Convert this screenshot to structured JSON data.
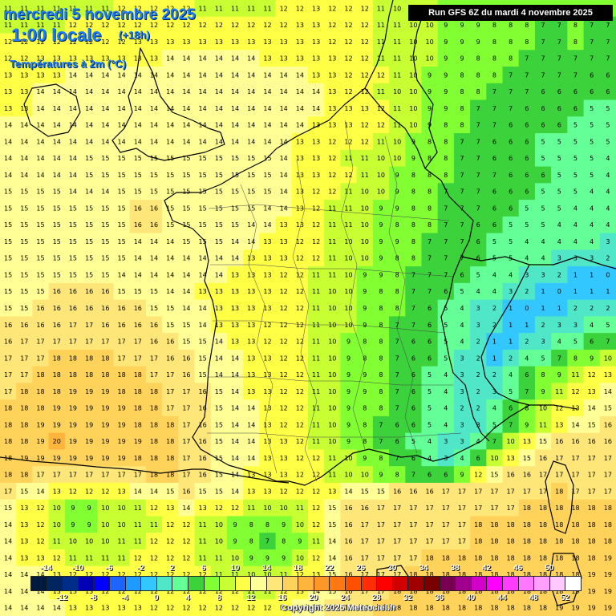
{
  "title_line1": "mercredi 5 novembre 2025",
  "title_line2": "1:00 locale",
  "title_offset": "(+18h)",
  "variable_label": "Températures à 2m (°C)",
  "run_info": "Run GFS 6Z du mardi 4 novembre 2025",
  "copyright": "Copyright 2025 Meteociel.fr",
  "legend": {
    "top_labels": [
      "-14",
      "-10",
      "-6",
      "-2",
      "2",
      "6",
      "10",
      "14",
      "18",
      "22",
      "26",
      "30",
      "34",
      "38",
      "42",
      "46",
      "50"
    ],
    "bottom_labels": [
      "-12",
      "-8",
      "-4",
      "0",
      "4",
      "8",
      "12",
      "16",
      "20",
      "24",
      "28",
      "32",
      "36",
      "40",
      "44",
      "48",
      "52"
    ],
    "colors": [
      "#001a3d",
      "#00255f",
      "#002d8a",
      "#0000b4",
      "#0000ff",
      "#1e64ff",
      "#1e9bff",
      "#32c8ff",
      "#50e6c8",
      "#64ff96",
      "#3cd23c",
      "#82ff32",
      "#c8ff32",
      "#ffff46",
      "#ffff96",
      "#ffe678",
      "#ffd25a",
      "#ffb43c",
      "#ff9628",
      "#ff7814",
      "#ff5000",
      "#ff2d00",
      "#ff0000",
      "#d20000",
      "#a00000",
      "#780000",
      "#780050",
      "#a0008c",
      "#d200c8",
      "#ff00ff",
      "#ff3cff",
      "#ff78ff",
      "#ffa0ff",
      "#ffc8ff",
      "#ffffff"
    ]
  },
  "temperature_grid": [
    [
      11,
      11,
      11,
      11,
      11,
      11,
      11,
      12,
      12,
      12,
      12,
      12,
      11,
      11,
      11,
      11,
      11,
      12,
      12,
      13,
      12,
      12,
      12,
      11,
      10,
      10,
      10,
      9,
      9,
      9,
      8,
      8,
      8,
      8,
      8,
      9,
      9,
      9
    ],
    [
      11,
      11,
      11,
      11,
      12,
      12,
      12,
      12,
      12,
      12,
      12,
      12,
      12,
      12,
      12,
      12,
      12,
      12,
      13,
      13,
      12,
      12,
      12,
      11,
      11,
      10,
      10,
      9,
      9,
      9,
      8,
      8,
      8,
      7,
      7,
      8,
      7,
      7
    ],
    [
      12,
      12,
      12,
      12,
      12,
      12,
      12,
      12,
      13,
      13,
      13,
      13,
      13,
      13,
      13,
      13,
      13,
      13,
      13,
      13,
      12,
      12,
      12,
      11,
      11,
      10,
      10,
      9,
      9,
      9,
      8,
      8,
      8,
      7,
      7,
      8,
      7,
      7
    ],
    [
      12,
      12,
      13,
      13,
      13,
      13,
      13,
      13,
      13,
      13,
      14,
      14,
      14,
      14,
      14,
      14,
      13,
      13,
      13,
      13,
      13,
      12,
      12,
      11,
      11,
      10,
      10,
      9,
      9,
      8,
      8,
      8,
      7,
      7,
      7,
      7,
      7,
      7
    ],
    [
      13,
      13,
      13,
      13,
      14,
      14,
      14,
      14,
      14,
      14,
      14,
      14,
      14,
      14,
      14,
      14,
      14,
      14,
      14,
      13,
      13,
      12,
      12,
      12,
      11,
      10,
      9,
      9,
      8,
      8,
      8,
      7,
      7,
      7,
      7,
      7,
      6,
      6
    ],
    [
      13,
      13,
      14,
      14,
      14,
      14,
      14,
      14,
      14,
      14,
      14,
      14,
      14,
      14,
      14,
      14,
      14,
      14,
      14,
      14,
      13,
      12,
      12,
      11,
      10,
      10,
      9,
      9,
      8,
      8,
      7,
      7,
      7,
      6,
      6,
      6,
      6,
      6
    ],
    [
      13,
      13,
      14,
      14,
      14,
      14,
      14,
      14,
      14,
      14,
      14,
      14,
      14,
      14,
      14,
      14,
      14,
      14,
      14,
      14,
      13,
      13,
      13,
      12,
      11,
      10,
      9,
      9,
      8,
      7,
      7,
      7,
      6,
      6,
      6,
      6,
      5,
      5
    ],
    [
      14,
      14,
      14,
      14,
      14,
      14,
      14,
      14,
      14,
      14,
      14,
      14,
      14,
      14,
      14,
      14,
      14,
      14,
      14,
      13,
      13,
      13,
      12,
      12,
      11,
      10,
      9,
      8,
      8,
      7,
      7,
      6,
      6,
      6,
      6,
      5,
      5,
      5
    ],
    [
      14,
      14,
      14,
      14,
      14,
      14,
      14,
      14,
      14,
      14,
      14,
      14,
      14,
      14,
      14,
      14,
      14,
      14,
      13,
      13,
      12,
      12,
      12,
      11,
      10,
      9,
      8,
      8,
      7,
      7,
      6,
      6,
      6,
      5,
      5,
      5,
      5,
      5
    ],
    [
      14,
      14,
      14,
      14,
      14,
      15,
      15,
      15,
      15,
      15,
      15,
      15,
      15,
      15,
      15,
      15,
      15,
      14,
      13,
      13,
      12,
      11,
      11,
      10,
      10,
      9,
      8,
      8,
      7,
      7,
      6,
      6,
      6,
      5,
      5,
      5,
      5,
      4
    ],
    [
      14,
      14,
      14,
      14,
      14,
      15,
      15,
      15,
      15,
      15,
      15,
      15,
      15,
      15,
      15,
      15,
      15,
      14,
      13,
      13,
      12,
      12,
      11,
      10,
      9,
      8,
      8,
      8,
      7,
      7,
      7,
      6,
      6,
      6,
      5,
      5,
      5,
      4
    ],
    [
      15,
      15,
      15,
      15,
      14,
      14,
      14,
      15,
      15,
      15,
      15,
      15,
      15,
      15,
      15,
      15,
      15,
      14,
      13,
      12,
      12,
      11,
      10,
      10,
      9,
      8,
      8,
      7,
      7,
      7,
      6,
      6,
      6,
      5,
      5,
      5,
      4,
      4
    ],
    [
      15,
      15,
      15,
      15,
      15,
      15,
      15,
      15,
      16,
      16,
      15,
      15,
      15,
      15,
      15,
      15,
      14,
      14,
      13,
      12,
      11,
      11,
      10,
      9,
      9,
      8,
      8,
      7,
      7,
      7,
      6,
      6,
      5,
      5,
      5,
      4,
      4,
      4
    ],
    [
      15,
      15,
      15,
      15,
      15,
      15,
      15,
      15,
      16,
      16,
      15,
      15,
      15,
      15,
      15,
      14,
      14,
      13,
      13,
      12,
      11,
      11,
      10,
      9,
      8,
      8,
      8,
      7,
      7,
      6,
      6,
      5,
      5,
      5,
      4,
      4,
      4,
      4
    ],
    [
      15,
      15,
      15,
      15,
      15,
      15,
      15,
      15,
      14,
      14,
      14,
      15,
      15,
      15,
      14,
      14,
      13,
      13,
      12,
      12,
      11,
      10,
      10,
      9,
      9,
      8,
      7,
      7,
      7,
      6,
      5,
      5,
      4,
      4,
      4,
      4,
      4,
      3
    ],
    [
      15,
      15,
      15,
      15,
      15,
      15,
      15,
      15,
      14,
      14,
      14,
      14,
      14,
      14,
      14,
      13,
      13,
      13,
      12,
      12,
      11,
      10,
      10,
      9,
      8,
      8,
      7,
      7,
      7,
      6,
      5,
      5,
      4,
      4,
      3,
      3,
      3,
      2
    ],
    [
      15,
      15,
      15,
      15,
      15,
      15,
      15,
      14,
      14,
      14,
      14,
      14,
      14,
      14,
      13,
      13,
      13,
      12,
      12,
      11,
      11,
      10,
      9,
      9,
      8,
      7,
      7,
      7,
      6,
      5,
      4,
      4,
      3,
      3,
      2,
      1,
      1,
      0
    ],
    [
      15,
      15,
      15,
      16,
      16,
      16,
      16,
      15,
      15,
      15,
      14,
      14,
      13,
      13,
      13,
      13,
      13,
      12,
      12,
      11,
      10,
      10,
      9,
      8,
      8,
      7,
      7,
      6,
      5,
      4,
      4,
      3,
      2,
      1,
      0,
      1,
      1,
      1
    ],
    [
      15,
      15,
      16,
      16,
      16,
      16,
      16,
      16,
      16,
      15,
      15,
      14,
      14,
      13,
      13,
      13,
      13,
      12,
      12,
      11,
      10,
      10,
      9,
      8,
      8,
      7,
      6,
      5,
      4,
      3,
      2,
      1,
      0,
      1,
      1,
      2,
      2,
      2
    ],
    [
      16,
      16,
      16,
      16,
      17,
      17,
      16,
      16,
      16,
      16,
      15,
      15,
      14,
      13,
      13,
      13,
      12,
      12,
      12,
      11,
      10,
      10,
      9,
      8,
      7,
      7,
      6,
      5,
      4,
      3,
      2,
      1,
      1,
      2,
      3,
      3,
      4,
      5
    ],
    [
      16,
      17,
      17,
      17,
      17,
      17,
      17,
      17,
      17,
      16,
      16,
      15,
      15,
      14,
      13,
      13,
      12,
      12,
      12,
      11,
      10,
      9,
      8,
      8,
      7,
      6,
      6,
      5,
      4,
      2,
      1,
      1,
      2,
      3,
      4,
      5,
      6,
      7
    ],
    [
      17,
      17,
      17,
      18,
      18,
      18,
      18,
      17,
      17,
      17,
      16,
      16,
      15,
      14,
      14,
      13,
      13,
      12,
      12,
      11,
      10,
      9,
      8,
      8,
      7,
      6,
      6,
      5,
      3,
      2,
      1,
      2,
      4,
      5,
      7,
      8,
      9,
      10
    ],
    [
      17,
      17,
      18,
      18,
      18,
      18,
      18,
      18,
      18,
      17,
      17,
      16,
      15,
      14,
      14,
      13,
      13,
      12,
      12,
      11,
      10,
      9,
      9,
      8,
      7,
      6,
      5,
      4,
      3,
      2,
      2,
      4,
      6,
      8,
      9,
      11,
      12,
      13
    ],
    [
      17,
      18,
      18,
      18,
      19,
      19,
      19,
      18,
      18,
      18,
      17,
      17,
      16,
      15,
      14,
      13,
      13,
      12,
      12,
      11,
      10,
      9,
      9,
      8,
      7,
      6,
      5,
      4,
      3,
      2,
      3,
      5,
      7,
      9,
      11,
      12,
      13,
      14
    ],
    [
      18,
      18,
      18,
      19,
      19,
      19,
      19,
      19,
      18,
      18,
      17,
      17,
      16,
      15,
      14,
      14,
      13,
      12,
      12,
      11,
      10,
      9,
      8,
      8,
      7,
      6,
      5,
      4,
      2,
      2,
      4,
      6,
      8,
      10,
      12,
      13,
      14,
      15
    ],
    [
      18,
      18,
      19,
      19,
      19,
      19,
      19,
      19,
      18,
      18,
      18,
      17,
      16,
      15,
      14,
      14,
      13,
      12,
      12,
      11,
      10,
      9,
      8,
      7,
      6,
      6,
      5,
      4,
      3,
      3,
      5,
      7,
      9,
      11,
      13,
      14,
      15,
      16
    ],
    [
      18,
      18,
      19,
      20,
      19,
      19,
      19,
      19,
      19,
      18,
      18,
      17,
      16,
      15,
      14,
      14,
      13,
      13,
      12,
      11,
      10,
      9,
      8,
      7,
      6,
      5,
      4,
      3,
      3,
      4,
      7,
      10,
      13,
      15,
      16,
      16,
      16,
      16
    ],
    [
      18,
      19,
      19,
      19,
      19,
      19,
      19,
      19,
      18,
      18,
      18,
      17,
      16,
      15,
      14,
      14,
      13,
      13,
      12,
      12,
      11,
      10,
      9,
      8,
      7,
      6,
      4,
      3,
      4,
      6,
      10,
      13,
      15,
      16,
      17,
      17,
      17,
      17
    ],
    [
      18,
      18,
      17,
      17,
      17,
      17,
      17,
      17,
      17,
      18,
      18,
      17,
      16,
      15,
      14,
      13,
      13,
      13,
      12,
      12,
      11,
      10,
      10,
      9,
      8,
      7,
      6,
      6,
      9,
      12,
      15,
      16,
      16,
      17,
      17,
      17,
      17,
      17
    ],
    [
      17,
      15,
      14,
      13,
      12,
      12,
      12,
      13,
      14,
      14,
      15,
      16,
      15,
      15,
      14,
      13,
      13,
      12,
      12,
      12,
      13,
      14,
      15,
      15,
      16,
      16,
      16,
      17,
      17,
      17,
      17,
      17,
      17,
      17,
      18,
      17,
      17,
      17
    ],
    [
      15,
      13,
      12,
      10,
      9,
      9,
      10,
      10,
      11,
      12,
      13,
      14,
      13,
      12,
      12,
      11,
      10,
      10,
      11,
      12,
      15,
      16,
      16,
      17,
      17,
      17,
      17,
      17,
      17,
      17,
      17,
      17,
      18,
      18,
      18,
      18,
      18,
      18
    ],
    [
      14,
      13,
      12,
      10,
      9,
      9,
      10,
      10,
      11,
      11,
      12,
      12,
      11,
      10,
      9,
      8,
      8,
      9,
      10,
      12,
      15,
      16,
      17,
      17,
      17,
      17,
      17,
      17,
      17,
      18,
      18,
      18,
      18,
      18,
      18,
      18,
      18,
      18
    ],
    [
      14,
      13,
      12,
      11,
      10,
      10,
      10,
      11,
      11,
      12,
      12,
      12,
      11,
      10,
      9,
      8,
      7,
      8,
      9,
      11,
      14,
      16,
      17,
      17,
      17,
      17,
      17,
      17,
      17,
      18,
      18,
      18,
      18,
      18,
      18,
      18,
      18,
      18
    ],
    [
      14,
      13,
      13,
      12,
      11,
      11,
      11,
      11,
      12,
      12,
      12,
      12,
      11,
      11,
      10,
      9,
      9,
      9,
      10,
      12,
      14,
      16,
      17,
      17,
      17,
      17,
      18,
      18,
      18,
      18,
      18,
      18,
      18,
      18,
      18,
      18,
      18,
      19
    ],
    [
      14,
      14,
      14,
      13,
      12,
      12,
      12,
      12,
      12,
      12,
      12,
      12,
      12,
      11,
      11,
      10,
      10,
      11,
      12,
      13,
      15,
      16,
      17,
      17,
      17,
      18,
      18,
      18,
      18,
      18,
      18,
      18,
      18,
      18,
      18,
      18,
      19,
      19
    ],
    [
      14,
      14,
      14,
      13,
      13,
      13,
      12,
      12,
      12,
      12,
      12,
      12,
      12,
      12,
      12,
      11,
      11,
      12,
      13,
      14,
      15,
      16,
      17,
      17,
      18,
      18,
      18,
      18,
      18,
      18,
      18,
      18,
      18,
      18,
      18,
      19,
      19,
      19
    ],
    [
      14,
      14,
      14,
      14,
      13,
      13,
      13,
      13,
      13,
      12,
      12,
      12,
      12,
      12,
      12,
      12,
      12,
      13,
      14,
      15,
      16,
      17,
      17,
      18,
      18,
      18,
      18,
      18,
      18,
      18,
      18,
      18,
      18,
      18,
      19,
      19,
      19,
      19
    ]
  ]
}
